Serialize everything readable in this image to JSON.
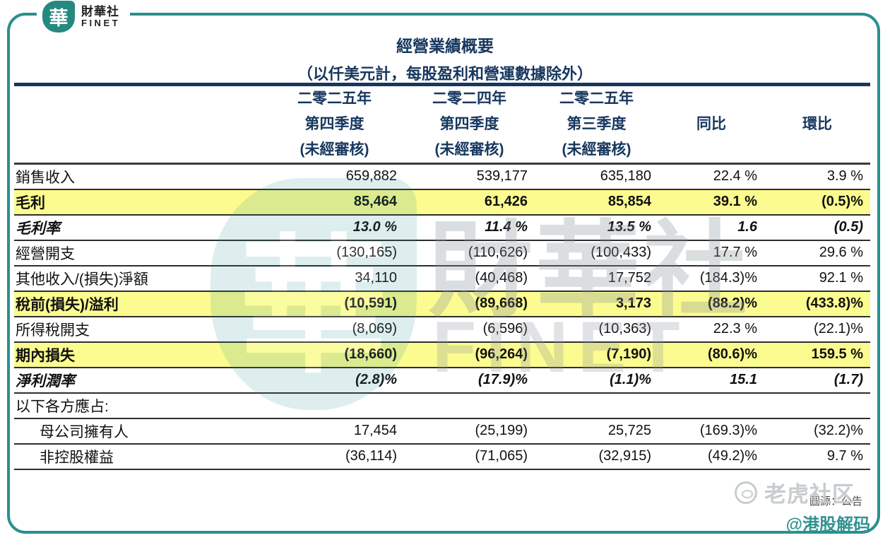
{
  "brand": {
    "logo_char": "華",
    "name_cn": "財華社",
    "name_en": "FINET"
  },
  "header": {
    "title": "經營業績概要",
    "subtitle": "（以仟美元計，每股盈利和營運數據除外）"
  },
  "table": {
    "columns": [
      {
        "line1": "二零二五年",
        "line2": "第四季度",
        "line3": "(未經審核)"
      },
      {
        "line1": "二零二四年",
        "line2": "第四季度",
        "line3": "(未經審核)"
      },
      {
        "line1": "二零二五年",
        "line2": "第三季度",
        "line3": "(未經審核)"
      },
      {
        "line1": "",
        "line2": "同比",
        "line3": ""
      },
      {
        "line1": "",
        "line2": "環比",
        "line3": ""
      }
    ],
    "rows": [
      {
        "label": "銷售收入",
        "values": [
          "659,882",
          "539,177",
          "635,180",
          "22.4 %",
          "3.9 %"
        ],
        "style": "normal",
        "indent": false
      },
      {
        "label": "毛利",
        "values": [
          "85,464",
          "61,426",
          "85,854",
          "39.1 %",
          "(0.5)%"
        ],
        "style": "highlight",
        "indent": false
      },
      {
        "label": "毛利率",
        "values": [
          "13.0 %",
          "11.4 %",
          "13.5 %",
          "1.6",
          "(0.5)"
        ],
        "style": "italic",
        "indent": false
      },
      {
        "label": "經營開支",
        "values": [
          "(130,165)",
          "(110,626)",
          "(100,433)",
          "17.7 %",
          "29.6 %"
        ],
        "style": "normal",
        "indent": false
      },
      {
        "label": "其他收入/(損失)淨額",
        "values": [
          "34,110",
          "(40,468)",
          "17,752",
          "(184.3)%",
          "92.1 %"
        ],
        "style": "normal",
        "indent": false
      },
      {
        "label": "稅前(損失)/溢利",
        "values": [
          "(10,591)",
          "(89,668)",
          "3,173",
          "(88.2)%",
          "(433.8)%"
        ],
        "style": "highlight",
        "indent": false
      },
      {
        "label": "所得稅開支",
        "values": [
          "(8,069)",
          "(6,596)",
          "(10,363)",
          "22.3 %",
          "(22.1)%"
        ],
        "style": "normal",
        "indent": false
      },
      {
        "label": "期內損失",
        "values": [
          "(18,660)",
          "(96,264)",
          "(7,190)",
          "(80.6)%",
          "159.5 %"
        ],
        "style": "highlight",
        "indent": false
      },
      {
        "label": "淨利潤率",
        "values": [
          "(2.8)%",
          "(17.9)%",
          "(1.1)%",
          "15.1",
          "(1.7)"
        ],
        "style": "italic",
        "indent": false
      },
      {
        "label": "以下各方應占:",
        "values": [
          "",
          "",
          "",
          "",
          ""
        ],
        "style": "normal",
        "indent": false
      },
      {
        "label": "母公司擁有人",
        "values": [
          "17,454",
          "(25,199)",
          "25,725",
          "(169.3)%",
          "(32.2)%"
        ],
        "style": "normal",
        "indent": true
      },
      {
        "label": "非控股權益",
        "values": [
          "(36,114)",
          "(71,065)",
          "(32,915)",
          "(49.2)%",
          "9.7 %"
        ],
        "style": "normal",
        "indent": true
      }
    ]
  },
  "watermark": {
    "logo_char": "華",
    "text_cn": "財華社",
    "text_en": "FINET"
  },
  "footer": {
    "community": "老虎社区",
    "source_note": "圖源：公告",
    "credit": "@港股解码"
  },
  "colors": {
    "teal": "#2b8f8e",
    "navy": "#17375e",
    "highlight": "#fbfb8f"
  }
}
